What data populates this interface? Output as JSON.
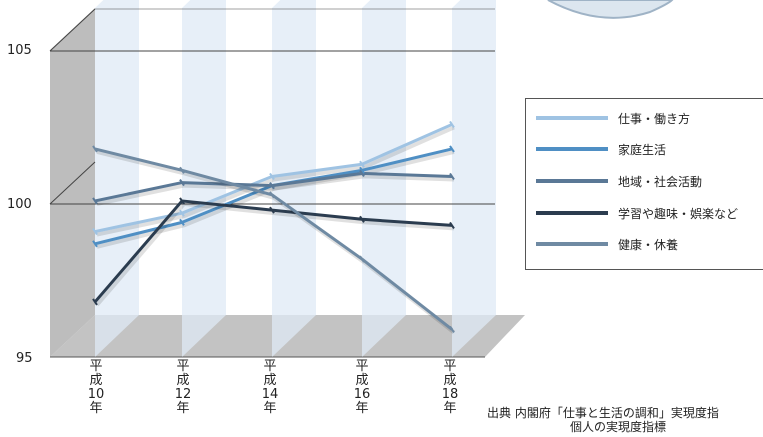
{
  "chart_data": {
    "type": "line",
    "title": "",
    "xlabel": "",
    "ylabel": "",
    "categories": [
      "平成10年",
      "平成12年",
      "平成14年",
      "平成16年",
      "平成18年"
    ],
    "x_tick_labels": [
      {
        "era": "平",
        "era2": "成",
        "num": "10",
        "unit": "年"
      },
      {
        "era": "平",
        "era2": "成",
        "num": "12",
        "unit": "年"
      },
      {
        "era": "平",
        "era2": "成",
        "num": "14",
        "unit": "年"
      },
      {
        "era": "平",
        "era2": "成",
        "num": "16",
        "unit": "年"
      },
      {
        "era": "平",
        "era2": "成",
        "num": "18",
        "unit": "年"
      }
    ],
    "ylim": [
      95,
      105
    ],
    "y_ticks": [
      "105",
      "100",
      "95"
    ],
    "series": [
      {
        "name": "仕事・働き方",
        "color": "#9fc3e3",
        "values": [
          99.1,
          99.7,
          100.9,
          101.3,
          102.6
        ]
      },
      {
        "name": "家庭生活",
        "color": "#4f8fc4",
        "values": [
          98.7,
          99.4,
          100.6,
          101.1,
          101.8
        ]
      },
      {
        "name": "地域・社会活動",
        "color": "#5a7896",
        "values": [
          100.1,
          100.7,
          100.6,
          101.0,
          100.9
        ]
      },
      {
        "name": "学習や趣味・娯楽など",
        "color": "#2b3c4f",
        "values": [
          96.8,
          100.1,
          99.8,
          99.5,
          99.3
        ]
      },
      {
        "name": "健康・休養",
        "color": "#6f8aa3",
        "values": [
          101.8,
          101.1,
          100.3,
          98.2,
          95.9
        ]
      }
    ],
    "grid": true,
    "legend_position": "right"
  },
  "legend": [
    {
      "label": "仕事・働き方",
      "color": "#9fc3e3"
    },
    {
      "label": "家庭生活",
      "color": "#4f8fc4"
    },
    {
      "label": "地域・社会活動",
      "color": "#5a7896"
    },
    {
      "label": "学習や趣味・娯楽など",
      "color": "#2b3c4f"
    },
    {
      "label": "健康・休養",
      "color": "#6f8aa3"
    }
  ],
  "source": {
    "line1": "出典 内閣府「仕事と生活の調和」実現度指",
    "line2": "個人の実現度指標"
  }
}
